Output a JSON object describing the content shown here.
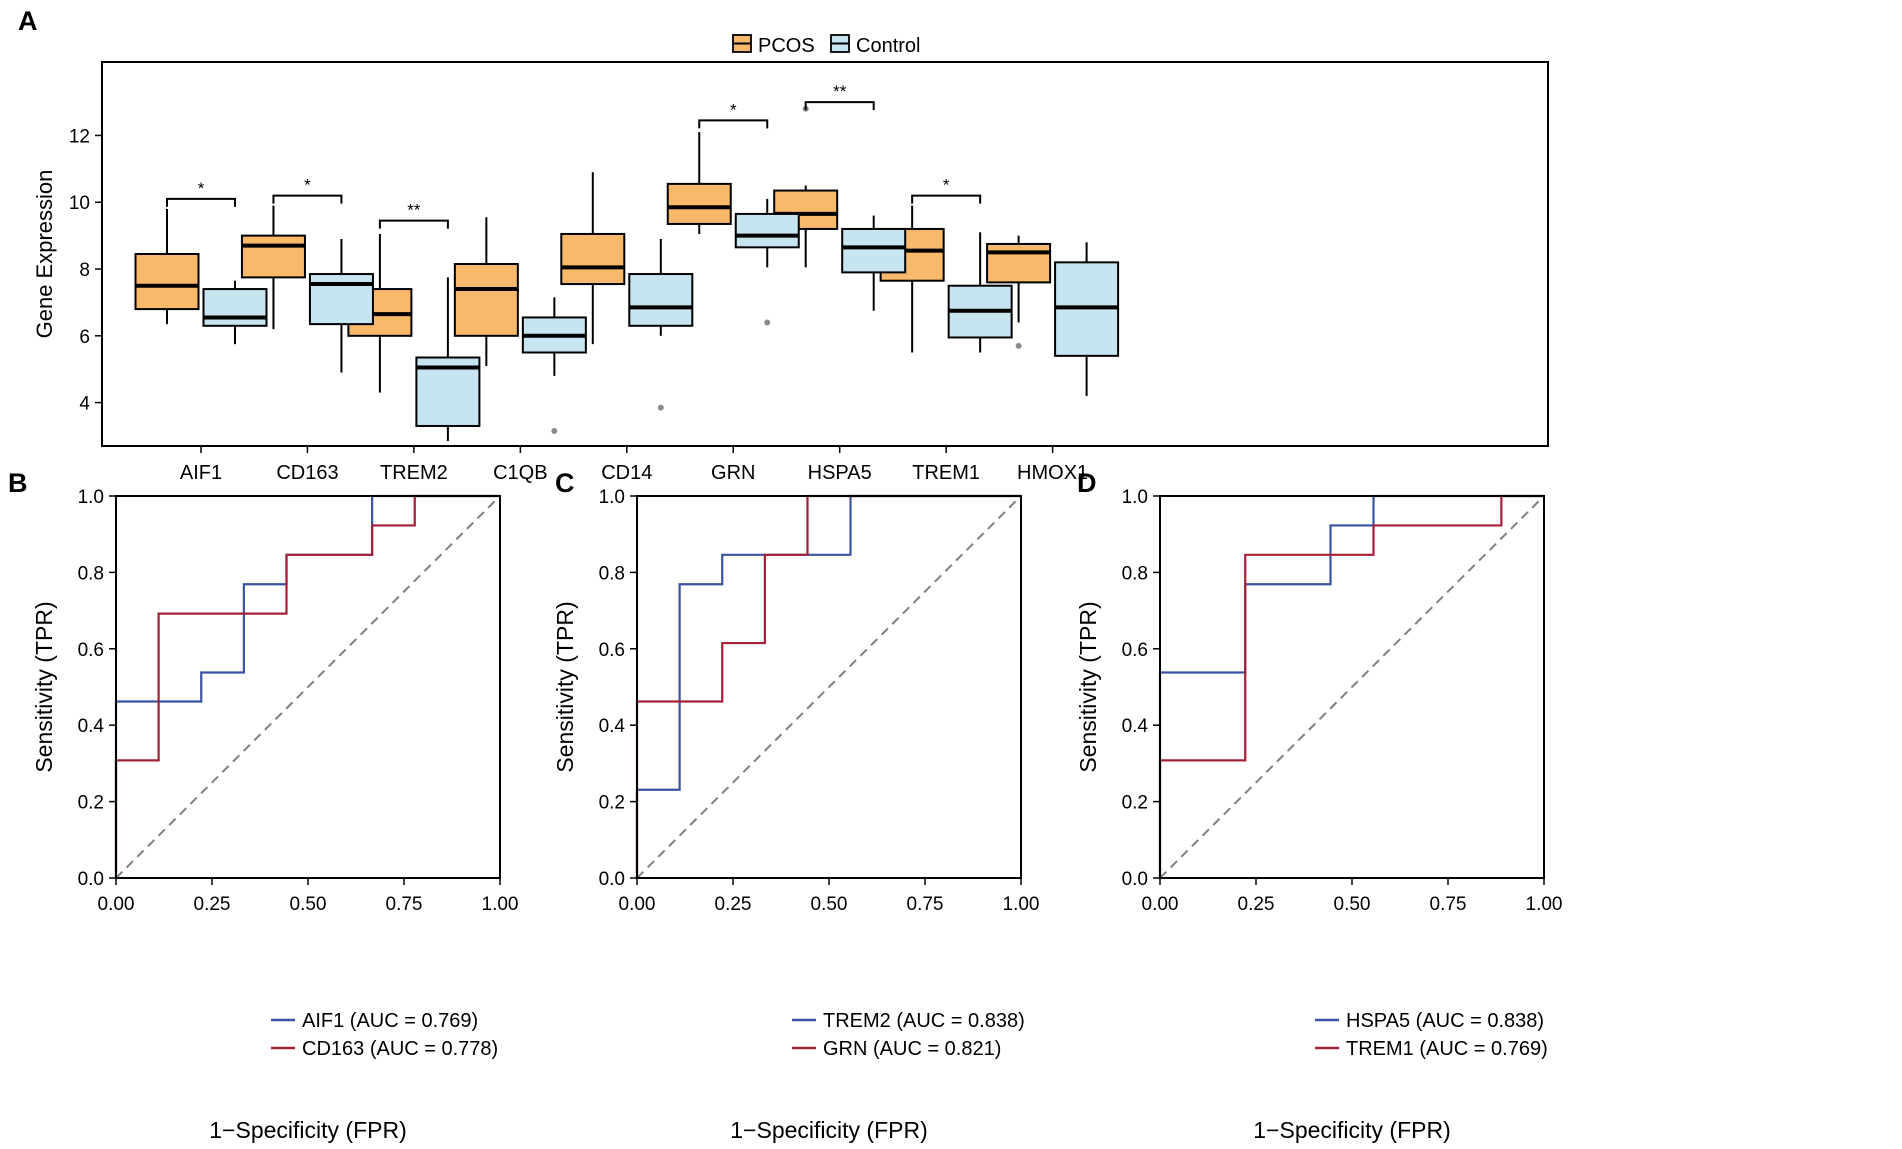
{
  "colors": {
    "pcos": "#F8B96A",
    "control": "#C6E5F0",
    "roc_blue": "#3A52A0",
    "roc_red": "#A52035",
    "outlier": "#8C8C8C",
    "diagonal": "#808080"
  },
  "chart_data": [
    {
      "panel": "A",
      "type": "box",
      "ylabel": "Gene Expression",
      "xlabel": "",
      "ylim": [
        2.7,
        14.2
      ],
      "yticks": [
        4,
        6,
        8,
        10,
        12
      ],
      "legend": {
        "position": "top",
        "entries": [
          {
            "name": "PCOS",
            "color": "#F8B96A"
          },
          {
            "name": "Control",
            "color": "#C6E5F0"
          }
        ]
      },
      "categories": [
        "AIF1",
        "CD163",
        "TREM2",
        "C1QB",
        "CD14",
        "GRN",
        "HSPA5",
        "TREM1",
        "HMOX1"
      ],
      "series": [
        {
          "name": "PCOS",
          "boxes": [
            {
              "lo": 6.35,
              "q1": 6.8,
              "med": 7.5,
              "q3": 8.45,
              "hi": 9.8,
              "outliers": []
            },
            {
              "lo": 6.2,
              "q1": 7.75,
              "med": 8.7,
              "q3": 9.0,
              "hi": 9.9,
              "outliers": []
            },
            {
              "lo": 4.3,
              "q1": 6.0,
              "med": 6.65,
              "q3": 7.4,
              "hi": 9.05,
              "outliers": []
            },
            {
              "lo": 5.1,
              "q1": 6.0,
              "med": 7.4,
              "q3": 8.15,
              "hi": 9.55,
              "outliers": []
            },
            {
              "lo": 5.75,
              "q1": 7.55,
              "med": 8.05,
              "q3": 9.05,
              "hi": 10.9,
              "outliers": []
            },
            {
              "lo": 9.05,
              "q1": 9.35,
              "med": 9.85,
              "q3": 10.55,
              "hi": 12.1,
              "outliers": []
            },
            {
              "lo": 8.05,
              "q1": 9.2,
              "med": 9.65,
              "q3": 10.35,
              "hi": 10.5,
              "outliers": [
                12.8
              ]
            },
            {
              "lo": 5.5,
              "q1": 7.65,
              "med": 8.55,
              "q3": 9.2,
              "hi": 9.9,
              "outliers": []
            },
            {
              "lo": 6.4,
              "q1": 7.6,
              "med": 8.5,
              "q3": 8.75,
              "hi": 9.0,
              "outliers": [
                5.7
              ]
            }
          ]
        },
        {
          "name": "Control",
          "boxes": [
            {
              "lo": 5.75,
              "q1": 6.3,
              "med": 6.55,
              "q3": 7.4,
              "hi": 7.65,
              "outliers": []
            },
            {
              "lo": 4.9,
              "q1": 6.35,
              "med": 7.55,
              "q3": 7.85,
              "hi": 8.9,
              "outliers": []
            },
            {
              "lo": 2.85,
              "q1": 3.3,
              "med": 5.05,
              "q3": 5.35,
              "hi": 7.75,
              "outliers": []
            },
            {
              "lo": 4.8,
              "q1": 5.5,
              "med": 6.0,
              "q3": 6.55,
              "hi": 7.15,
              "outliers": [
                3.15
              ]
            },
            {
              "lo": 6.0,
              "q1": 6.3,
              "med": 6.85,
              "q3": 7.85,
              "hi": 8.9,
              "outliers": [
                3.85
              ]
            },
            {
              "lo": 8.05,
              "q1": 8.65,
              "med": 9.0,
              "q3": 9.65,
              "hi": 10.1,
              "outliers": [
                6.4
              ]
            },
            {
              "lo": 6.75,
              "q1": 7.9,
              "med": 8.65,
              "q3": 9.2,
              "hi": 9.6,
              "outliers": []
            },
            {
              "lo": 5.5,
              "q1": 5.95,
              "med": 6.75,
              "q3": 7.5,
              "hi": 9.1,
              "outliers": []
            },
            {
              "lo": 4.2,
              "q1": 5.4,
              "med": 6.85,
              "q3": 8.2,
              "hi": 8.8,
              "outliers": []
            }
          ]
        }
      ],
      "significance": [
        {
          "category": "AIF1",
          "label": "*",
          "y": 10.1
        },
        {
          "category": "CD163",
          "label": "*",
          "y": 10.2
        },
        {
          "category": "TREM2",
          "label": "**",
          "y": 9.45
        },
        {
          "category": "GRN",
          "label": "*",
          "y": 12.45
        },
        {
          "category": "HSPA5",
          "label": "**",
          "y": 13.0
        },
        {
          "category": "TREM1",
          "label": "*",
          "y": 10.2
        }
      ]
    },
    {
      "panel": "B",
      "type": "line",
      "xlabel": "1−Specificity (FPR)",
      "ylabel": "Sensitivity (TPR)",
      "xlim": [
        0,
        1
      ],
      "ylim": [
        0,
        1
      ],
      "xticks": [
        "0.00",
        "0.25",
        "0.50",
        "0.75",
        "1.00"
      ],
      "yticks": [
        "0.0",
        "0.2",
        "0.4",
        "0.6",
        "0.8",
        "1.0"
      ],
      "legend": "bottom-right",
      "series": [
        {
          "name": "AIF1 (AUC = 0.769)",
          "color": "blue",
          "x": [
            0,
            0,
            0.222,
            0.222,
            0.333,
            0.333,
            0.444,
            0.444,
            0.667,
            0.667,
            1.0
          ],
          "y": [
            0,
            0.462,
            0.462,
            0.538,
            0.538,
            0.769,
            0.769,
            0.846,
            0.846,
            1.0,
            1.0
          ]
        },
        {
          "name": "CD163 (AUC = 0.778)",
          "color": "red",
          "x": [
            0,
            0,
            0.111,
            0.111,
            0.444,
            0.444,
            0.667,
            0.667,
            0.778,
            0.778,
            1.0
          ],
          "y": [
            0,
            0.308,
            0.308,
            0.692,
            0.692,
            0.846,
            0.846,
            0.923,
            0.923,
            1.0,
            1.0
          ]
        }
      ]
    },
    {
      "panel": "C",
      "type": "line",
      "xlabel": "1−Specificity (FPR)",
      "ylabel": "Sensitivity (TPR)",
      "xlim": [
        0,
        1
      ],
      "ylim": [
        0,
        1
      ],
      "xticks": [
        "0.00",
        "0.25",
        "0.50",
        "0.75",
        "1.00"
      ],
      "yticks": [
        "0.0",
        "0.2",
        "0.4",
        "0.6",
        "0.8",
        "1.0"
      ],
      "legend": "bottom-right",
      "series": [
        {
          "name": "TREM2 (AUC = 0.838)",
          "color": "blue",
          "x": [
            0,
            0,
            0.111,
            0.111,
            0.222,
            0.222,
            0.556,
            0.556,
            1.0
          ],
          "y": [
            0,
            0.231,
            0.231,
            0.769,
            0.769,
            0.846,
            0.846,
            1.0,
            1.0
          ]
        },
        {
          "name": "GRN (AUC = 0.821)",
          "color": "red",
          "x": [
            0,
            0,
            0.222,
            0.222,
            0.333,
            0.333,
            0.444,
            0.444,
            1.0
          ],
          "y": [
            0,
            0.462,
            0.462,
            0.615,
            0.615,
            0.846,
            0.846,
            1.0,
            1.0
          ]
        }
      ]
    },
    {
      "panel": "D",
      "type": "line",
      "xlabel": "1−Specificity (FPR)",
      "ylabel": "Sensitivity (TPR)",
      "xlim": [
        0,
        1
      ],
      "ylim": [
        0,
        1
      ],
      "xticks": [
        "0.00",
        "0.25",
        "0.50",
        "0.75",
        "1.00"
      ],
      "yticks": [
        "0.0",
        "0.2",
        "0.4",
        "0.6",
        "0.8",
        "1.0"
      ],
      "legend": "bottom-right",
      "series": [
        {
          "name": "HSPA5 (AUC = 0.838)",
          "color": "blue",
          "x": [
            0,
            0,
            0.222,
            0.222,
            0.444,
            0.444,
            0.556,
            0.556,
            1.0
          ],
          "y": [
            0,
            0.538,
            0.538,
            0.769,
            0.769,
            0.923,
            0.923,
            1.0,
            1.0
          ]
        },
        {
          "name": "TREM1 (AUC = 0.769)",
          "color": "red",
          "x": [
            0,
            0,
            0.222,
            0.222,
            0.556,
            0.556,
            0.889,
            0.889,
            1.0
          ],
          "y": [
            0,
            0.308,
            0.308,
            0.846,
            0.846,
            0.923,
            0.923,
            1.0,
            1.0
          ]
        }
      ]
    }
  ]
}
